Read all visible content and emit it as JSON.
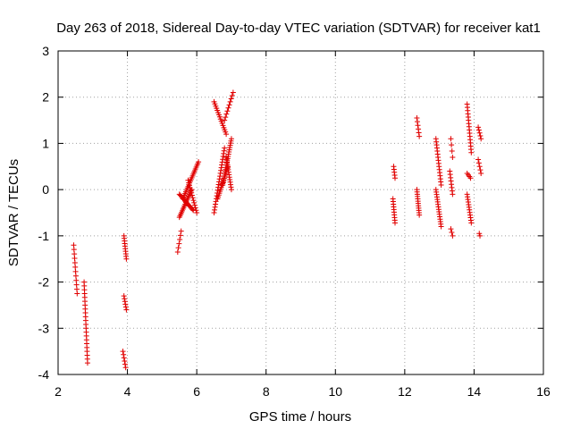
{
  "chart_data": {
    "type": "scatter",
    "title": "Day 263 of 2018, Sidereal Day-to-day VTEC variation (SDTVAR) for receiver kat1",
    "xlabel": "GPS time / hours",
    "ylabel": "SDTVAR / TECUs",
    "xlim": [
      2,
      16
    ],
    "ylim": [
      -4,
      3
    ],
    "xticks": [
      "2",
      "4",
      "6",
      "8",
      "10",
      "12",
      "14",
      "16"
    ],
    "yticks": [
      "-4",
      "-3",
      "-2",
      "-1",
      "0",
      "1",
      "2",
      "3"
    ],
    "grid": true,
    "marker": "+",
    "color": "#e00000",
    "segments": [
      {
        "x0": 2.45,
        "x1": 2.55,
        "y0": -1.2,
        "y1": -2.25,
        "n": 12
      },
      {
        "x0": 2.75,
        "x1": 2.85,
        "y0": -2.0,
        "y1": -3.75,
        "n": 22
      },
      {
        "x0": 3.9,
        "x1": 3.97,
        "y0": -1.0,
        "y1": -1.5,
        "n": 10
      },
      {
        "x0": 3.9,
        "x1": 3.97,
        "y0": -2.3,
        "y1": -2.6,
        "n": 6
      },
      {
        "x0": 3.87,
        "x1": 3.95,
        "y0": -3.5,
        "y1": -3.85,
        "n": 6
      },
      {
        "x0": 5.45,
        "x1": 5.55,
        "y0": -1.35,
        "y1": -0.9,
        "n": 6
      },
      {
        "x0": 5.5,
        "x1": 5.85,
        "y0": -0.6,
        "y1": 0.0,
        "n": 18
      },
      {
        "x0": 5.5,
        "x1": 5.9,
        "y0": -0.1,
        "y1": -0.45,
        "n": 16
      },
      {
        "x0": 5.6,
        "x1": 6.05,
        "y0": -0.2,
        "y1": 0.6,
        "n": 22
      },
      {
        "x0": 5.75,
        "x1": 6.0,
        "y0": 0.2,
        "y1": -0.5,
        "n": 14
      },
      {
        "x0": 6.5,
        "x1": 6.85,
        "y0": 1.9,
        "y1": 1.2,
        "n": 16
      },
      {
        "x0": 6.8,
        "x1": 7.05,
        "y0": 1.5,
        "y1": 2.1,
        "n": 10
      },
      {
        "x0": 6.5,
        "x1": 6.8,
        "y0": -0.5,
        "y1": 0.9,
        "n": 24
      },
      {
        "x0": 6.6,
        "x1": 6.9,
        "y0": -0.2,
        "y1": 0.5,
        "n": 18
      },
      {
        "x0": 6.75,
        "x1": 7.0,
        "y0": 0.1,
        "y1": 1.1,
        "n": 22
      },
      {
        "x0": 6.85,
        "x1": 7.0,
        "y0": 0.7,
        "y1": 0.0,
        "n": 14
      },
      {
        "x0": 11.68,
        "x1": 11.72,
        "y0": 0.5,
        "y1": 0.25,
        "n": 5
      },
      {
        "x0": 11.66,
        "x1": 11.72,
        "y0": -0.2,
        "y1": -0.72,
        "n": 10
      },
      {
        "x0": 12.35,
        "x1": 12.42,
        "y0": 1.55,
        "y1": 1.15,
        "n": 6
      },
      {
        "x0": 12.35,
        "x1": 12.42,
        "y0": 0.0,
        "y1": -0.55,
        "n": 12
      },
      {
        "x0": 12.9,
        "x1": 13.05,
        "y0": 1.1,
        "y1": 0.1,
        "n": 16
      },
      {
        "x0": 12.9,
        "x1": 13.05,
        "y0": 0.0,
        "y1": -0.8,
        "n": 16
      },
      {
        "x0": 13.33,
        "x1": 13.38,
        "y0": 1.1,
        "y1": 0.7,
        "n": 4
      },
      {
        "x0": 13.3,
        "x1": 13.38,
        "y0": 0.4,
        "y1": -0.1,
        "n": 8
      },
      {
        "x0": 13.33,
        "x1": 13.38,
        "y0": -0.85,
        "y1": -1.0,
        "n": 3
      },
      {
        "x0": 13.8,
        "x1": 13.92,
        "y0": 1.85,
        "y1": 0.8,
        "n": 16
      },
      {
        "x0": 13.8,
        "x1": 13.9,
        "y0": 0.35,
        "y1": 0.25,
        "n": 4
      },
      {
        "x0": 13.8,
        "x1": 13.92,
        "y0": -0.1,
        "y1": -0.72,
        "n": 12
      },
      {
        "x0": 14.12,
        "x1": 14.2,
        "y0": 1.35,
        "y1": 1.1,
        "n": 5
      },
      {
        "x0": 14.12,
        "x1": 14.2,
        "y0": 0.65,
        "y1": 0.35,
        "n": 5
      },
      {
        "x0": 14.15,
        "x1": 14.17,
        "y0": -0.95,
        "y1": -1.0,
        "n": 2
      }
    ]
  }
}
